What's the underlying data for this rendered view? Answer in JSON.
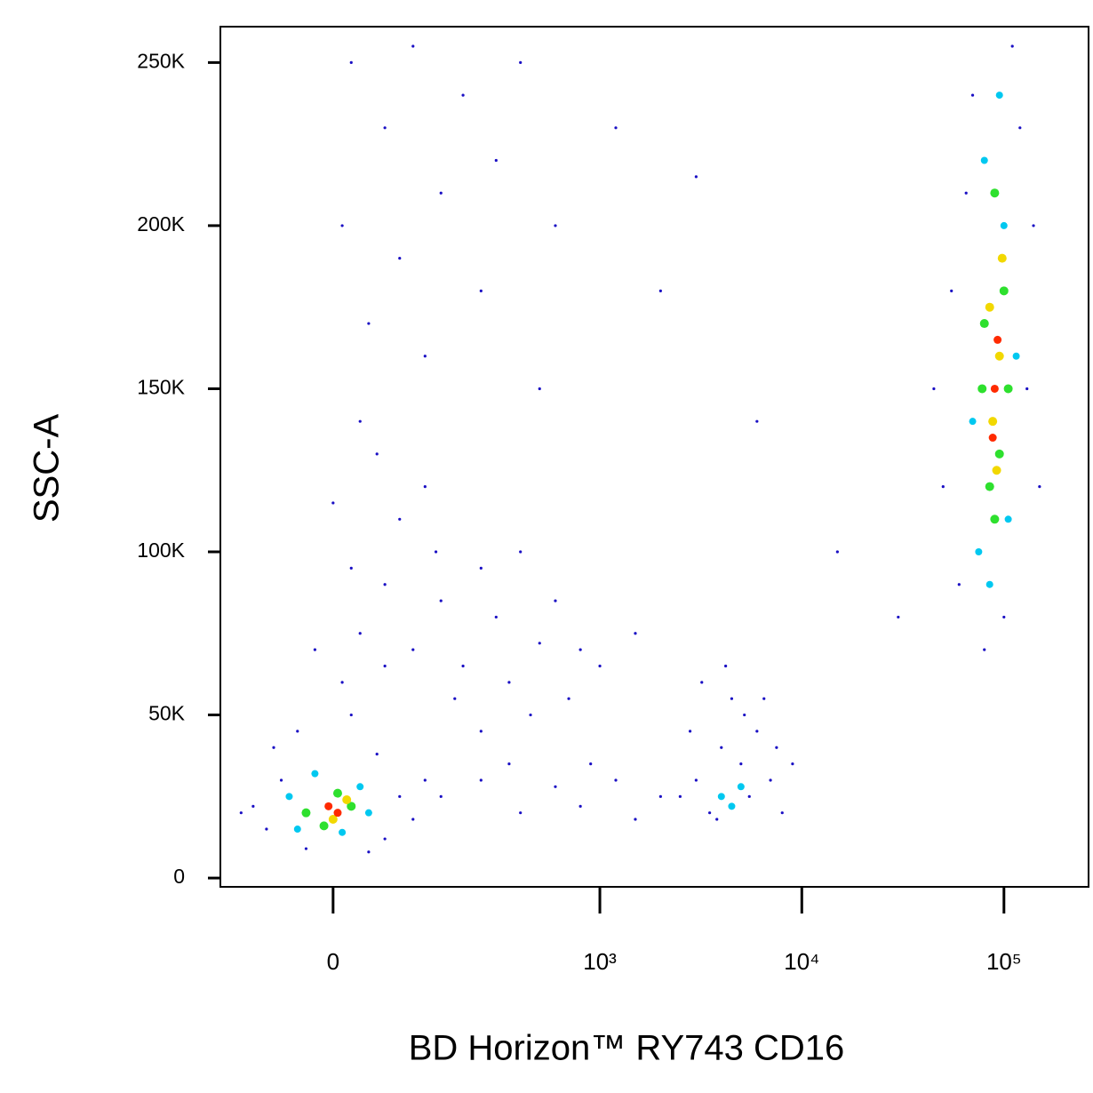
{
  "chart_data": {
    "type": "scatter",
    "x_label": "BD Horizon™ RY743 CD16",
    "y_label": "SSC-A",
    "xscale": "biexponential",
    "xlim": [
      -160,
      262144
    ],
    "ylim": [
      -2700,
      261000
    ],
    "xticks": [
      0,
      {
        "value": 1000,
        "label": "10³"
      },
      {
        "value": 10000,
        "label": "10⁴"
      },
      {
        "value": 100000,
        "label": "10⁵"
      }
    ],
    "yticks": [
      0,
      {
        "value": 50000,
        "label": "50K"
      },
      {
        "value": 100000,
        "label": "100K"
      },
      {
        "value": 150000,
        "label": "150K"
      },
      {
        "value": 200000,
        "label": "200K"
      },
      {
        "value": 250000,
        "label": "250K"
      }
    ],
    "series": [
      {
        "color": "#1a0fc4",
        "x": [
          -80,
          -60,
          -100,
          60,
          80,
          50,
          -40,
          20,
          -120,
          100,
          40,
          -30,
          120,
          -70,
          10,
          30,
          60,
          100,
          150,
          200,
          250,
          300,
          400,
          500,
          80,
          20,
          -20,
          0,
          180,
          350,
          600,
          800,
          120,
          250,
          450,
          700,
          1000,
          1500,
          60,
          140,
          20,
          60,
          100,
          150,
          200,
          300,
          80,
          40,
          120,
          250,
          30,
          10,
          400,
          600,
          1200,
          3000,
          50,
          500,
          2000,
          6000,
          15000,
          30000,
          2500,
          3000,
          3500,
          4000,
          4500,
          5000,
          5500,
          6000,
          7000,
          8000,
          3200,
          4200,
          2800,
          6500,
          7500,
          9000,
          3800,
          5200,
          150,
          250,
          400,
          600,
          800,
          1200,
          1500,
          2000,
          350,
          900,
          50000,
          55000,
          60000,
          130000,
          140000,
          70000,
          110000,
          45000,
          150000,
          80000,
          100000,
          65000,
          120000
        ],
        "y": [
          15000,
          30000,
          22000,
          12000,
          25000,
          38000,
          45000,
          50000,
          20000,
          18000,
          8000,
          9000,
          30000,
          40000,
          60000,
          75000,
          90000,
          70000,
          85000,
          65000,
          95000,
          80000,
          100000,
          72000,
          110000,
          95000,
          70000,
          115000,
          55000,
          60000,
          85000,
          70000,
          120000,
          45000,
          50000,
          55000,
          65000,
          75000,
          65000,
          100000,
          250000,
          230000,
          255000,
          210000,
          240000,
          220000,
          190000,
          170000,
          160000,
          180000,
          140000,
          200000,
          250000,
          200000,
          230000,
          215000,
          130000,
          150000,
          180000,
          140000,
          100000,
          80000,
          25000,
          30000,
          20000,
          40000,
          55000,
          35000,
          25000,
          45000,
          30000,
          20000,
          60000,
          65000,
          45000,
          55000,
          40000,
          35000,
          18000,
          50000,
          25000,
          30000,
          20000,
          28000,
          22000,
          30000,
          18000,
          25000,
          35000,
          35000,
          120000,
          180000,
          90000,
          150000,
          200000,
          240000,
          255000,
          150000,
          120000,
          70000,
          80000,
          210000,
          230000
        ]
      },
      {
        "color": "#00c8f0",
        "x": [
          -40,
          10,
          30,
          -20,
          40,
          -50,
          4000,
          5000,
          4500,
          75000,
          105000,
          80000,
          95000,
          70000,
          115000,
          85000,
          100000
        ],
        "y": [
          15000,
          14000,
          28000,
          32000,
          20000,
          25000,
          25000,
          28000,
          22000,
          100000,
          110000,
          220000,
          240000,
          140000,
          160000,
          90000,
          200000
        ]
      },
      {
        "color": "#2ee02e",
        "x": [
          -10,
          20,
          -30,
          5,
          85000,
          95000,
          80000,
          100000,
          90000,
          90000,
          105000,
          78000
        ],
        "y": [
          16000,
          22000,
          20000,
          26000,
          120000,
          130000,
          170000,
          180000,
          210000,
          110000,
          150000,
          150000
        ]
      },
      {
        "color": "#f2d800",
        "x": [
          0,
          15,
          88000,
          95000,
          85000,
          92000,
          98000
        ],
        "y": [
          18000,
          24000,
          140000,
          160000,
          175000,
          125000,
          190000
        ]
      },
      {
        "color": "#ff2a00",
        "x": [
          5,
          -5,
          90000,
          93000,
          88000
        ],
        "y": [
          20000,
          22000,
          150000,
          165000,
          135000
        ]
      }
    ]
  }
}
